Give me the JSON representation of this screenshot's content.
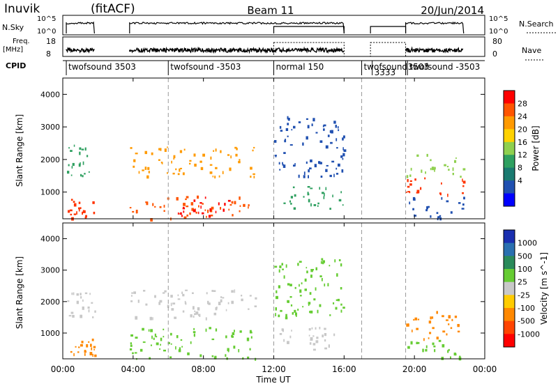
{
  "header": {
    "station": "Inuvik",
    "mode": "(fitACF)",
    "beam": "Beam 11",
    "date": "20/Jun/2014"
  },
  "strip": {
    "nsky_label": "N.Sky",
    "nsky_top": "10^5",
    "nsky_bottom": "10^0",
    "nsearch_label": "N.Search",
    "freq_label_1": "Freq.",
    "freq_label_2": "[MHz]",
    "freq_ticks": [
      "18",
      "8"
    ],
    "nave_ticks": [
      "80",
      "0"
    ],
    "nave_label": "Nave",
    "cpid_label": "CPID",
    "cpid_segments": [
      {
        "name": "twofsound 3503",
        "start": 0.2,
        "end": 6.0
      },
      {
        "name": "twofsound -3503",
        "start": 6.0,
        "end": 12.0
      },
      {
        "name": "normal 150",
        "start": 12.0,
        "end": 17.0
      },
      {
        "name": "twofsound",
        "start": 17.0,
        "end": 19.5
      },
      {
        "name": "3333",
        "start": 17.6,
        "end": 19.5
      },
      {
        "name": "3503",
        "start": 19.5,
        "end": 20.3
      },
      {
        "name": "twofsound -3503",
        "start": 19.6,
        "end": 24.0
      }
    ]
  },
  "axes": {
    "ylabel": "Slant Range [km]",
    "yticks": [
      1000,
      2000,
      3000,
      4000
    ],
    "xticks": [
      "00:00",
      "04:00",
      "08:00",
      "12:00",
      "16:00",
      "20:00",
      "00:00"
    ],
    "xlabel": "Time UT"
  },
  "power_colorbar": {
    "label": "Power [dB]",
    "ticks": [
      "28",
      "24",
      "20",
      "16",
      "12",
      "8",
      "4"
    ],
    "colors": [
      "#ff0000",
      "#ff5500",
      "#ff9a00",
      "#ffd200",
      "#8fd04f",
      "#2fa060",
      "#1a7a70",
      "#2050b0",
      "#0000ff"
    ]
  },
  "velocity_colorbar": {
    "label": "Velocity [m s^-1]",
    "ticks": [
      "1000",
      "500",
      "100",
      "25",
      "-25",
      "-100",
      "-500",
      "-1000"
    ],
    "colors": [
      "#1a2fb0",
      "#2a70b0",
      "#2a8a5a",
      "#66cc33",
      "#c8c8c8",
      "#ffcc00",
      "#ff8800",
      "#ff4400",
      "#ff0000"
    ]
  },
  "chart_data": {
    "type": "heatmap",
    "x_unit": "hours UT",
    "x_range": [
      0,
      24
    ],
    "y_range": [
      180,
      4500
    ],
    "data_gaps": [
      [
        1.8,
        3.8
      ],
      [
        16.0,
        16.9
      ],
      [
        17.1,
        19.5
      ],
      [
        22.8,
        23.9
      ]
    ],
    "mode_boundaries_hours": [
      6.0,
      12.0,
      17.0,
      19.5
    ],
    "power_regions": [
      {
        "t": [
          0.2,
          1.8
        ],
        "r": [
          200,
          800
        ],
        "color": "#ff3300"
      },
      {
        "t": [
          0.2,
          1.8
        ],
        "r": [
          1500,
          2500
        ],
        "color": "#2fa060"
      },
      {
        "t": [
          3.8,
          10.8
        ],
        "r": [
          200,
          900
        ],
        "color": "#ff5500"
      },
      {
        "t": [
          6.5,
          9.5
        ],
        "r": [
          200,
          900
        ],
        "color": "#ff0000"
      },
      {
        "t": [
          3.8,
          11.0
        ],
        "r": [
          1500,
          2400
        ],
        "color": "#ff9a00"
      },
      {
        "t": [
          12.0,
          16.0
        ],
        "r": [
          500,
          1200
        ],
        "color": "#2fa060"
      },
      {
        "t": [
          12.0,
          16.0
        ],
        "r": [
          1500,
          3400
        ],
        "color": "#2050b0"
      },
      {
        "t": [
          19.5,
          22.8
        ],
        "r": [
          900,
          1500
        ],
        "color": "#ff3300"
      },
      {
        "t": [
          19.5,
          22.8
        ],
        "r": [
          1500,
          2200
        ],
        "color": "#8fd04f"
      },
      {
        "t": [
          19.5,
          22.8
        ],
        "r": [
          200,
          900
        ],
        "color": "#2050b0"
      }
    ],
    "velocity_regions": [
      {
        "t": [
          0.2,
          1.8
        ],
        "r": [
          300,
          900
        ],
        "color": "#ff8800"
      },
      {
        "t": [
          0.2,
          1.8
        ],
        "r": [
          1500,
          2500
        ],
        "color": "#c8c8c8"
      },
      {
        "t": [
          3.8,
          11.0
        ],
        "r": [
          200,
          1200
        ],
        "color": "#66cc33"
      },
      {
        "t": [
          3.8,
          11.0
        ],
        "r": [
          1500,
          2400
        ],
        "color": "#c8c8c8"
      },
      {
        "t": [
          12.0,
          16.0
        ],
        "r": [
          500,
          1200
        ],
        "color": "#c8c8c8"
      },
      {
        "t": [
          12.0,
          16.0
        ],
        "r": [
          1500,
          3400
        ],
        "color": "#66cc33"
      },
      {
        "t": [
          19.5,
          22.8
        ],
        "r": [
          800,
          1700
        ],
        "color": "#ff8800"
      },
      {
        "t": [
          19.5,
          22.8
        ],
        "r": [
          200,
          800
        ],
        "color": "#66cc33"
      }
    ]
  }
}
